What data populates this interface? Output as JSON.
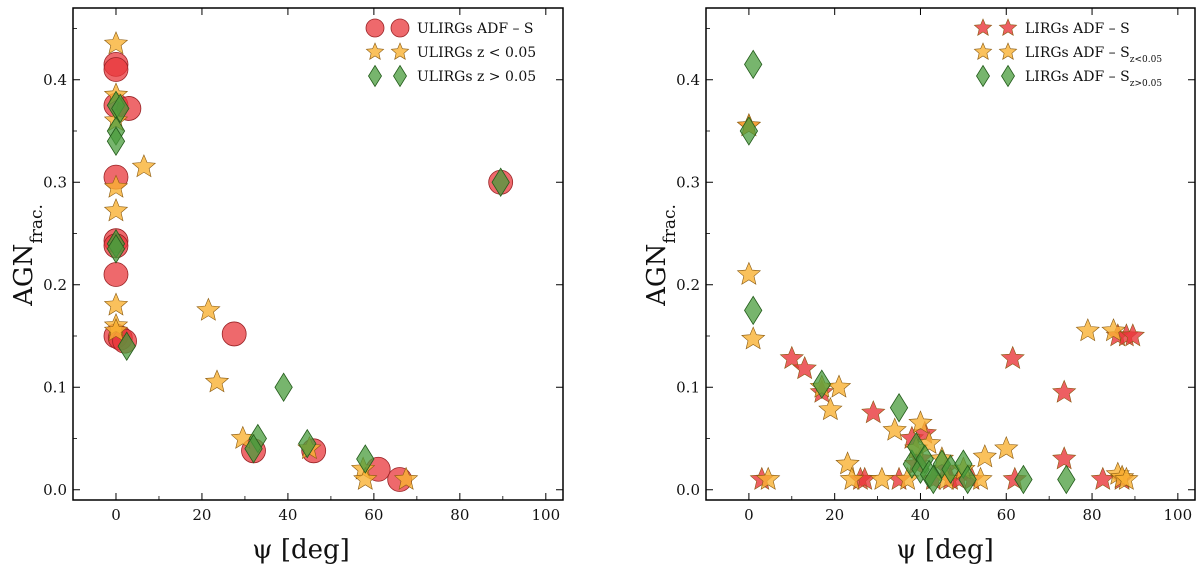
{
  "chart_data": [
    {
      "type": "scatter",
      "panel": "left",
      "xlabel": "ψ [deg]",
      "ylabel": "AGN_frac.",
      "ylabel_main": "AGN",
      "ylabel_sub": "frac.",
      "xlim": [
        -10,
        104
      ],
      "ylim": [
        -0.01,
        0.47
      ],
      "xticks": [
        0,
        20,
        40,
        60,
        80,
        100
      ],
      "yticks": [
        0.0,
        0.1,
        0.2,
        0.3,
        0.4
      ],
      "xtick_labels": [
        "0",
        "20",
        "40",
        "60",
        "80",
        "100"
      ],
      "ytick_labels": [
        "0.0",
        "0.1",
        "0.2",
        "0.3",
        "0.4"
      ],
      "legend_position": "top-right",
      "series": [
        {
          "name": "ULIRGs ADF – S",
          "marker": "circle",
          "color": "#e8373b",
          "points": [
            [
              0,
              0.415
            ],
            [
              0,
              0.41
            ],
            [
              0,
              0.375
            ],
            [
              3,
              0.372
            ],
            [
              0,
              0.305
            ],
            [
              0,
              0.243
            ],
            [
              0,
              0.238
            ],
            [
              0,
              0.21
            ],
            [
              0,
              0.15
            ],
            [
              1,
              0.148
            ],
            [
              2,
              0.145
            ],
            [
              27.5,
              0.152
            ],
            [
              32,
              0.038
            ],
            [
              46,
              0.038
            ],
            [
              61,
              0.02
            ],
            [
              66,
              0.01
            ],
            [
              89.5,
              0.3
            ]
          ]
        },
        {
          "name": "ULIRGs z < 0.05",
          "marker": "star",
          "color": "#f9b233",
          "points": [
            [
              0,
              0.435
            ],
            [
              0,
              0.385
            ],
            [
              0,
              0.36
            ],
            [
              0,
              0.295
            ],
            [
              0,
              0.272
            ],
            [
              0,
              0.18
            ],
            [
              0,
              0.16
            ],
            [
              0,
              0.155
            ],
            [
              6.5,
              0.315
            ],
            [
              21.5,
              0.175
            ],
            [
              23.5,
              0.105
            ],
            [
              29.5,
              0.05
            ],
            [
              45,
              0.04
            ],
            [
              57.5,
              0.02
            ],
            [
              58,
              0.01
            ],
            [
              67.5,
              0.01
            ]
          ]
        },
        {
          "name": "ULIRGs z > 0.05",
          "marker": "diamond",
          "color": "#4a9c3c",
          "points": [
            [
              0,
              0.375
            ],
            [
              1,
              0.372
            ],
            [
              0,
              0.35
            ],
            [
              0,
              0.34
            ],
            [
              0,
              0.24
            ],
            [
              0,
              0.235
            ],
            [
              2.5,
              0.14
            ],
            [
              39,
              0.1
            ],
            [
              33,
              0.05
            ],
            [
              32,
              0.04
            ],
            [
              44.5,
              0.045
            ],
            [
              58,
              0.03
            ],
            [
              89.5,
              0.3
            ]
          ]
        }
      ]
    },
    {
      "type": "scatter",
      "panel": "right",
      "xlabel": "ψ [deg]",
      "ylabel": "AGN_frac.",
      "ylabel_main": "AGN",
      "ylabel_sub": "frac.",
      "xlim": [
        -10,
        104
      ],
      "ylim": [
        -0.01,
        0.47
      ],
      "xticks": [
        0,
        20,
        40,
        60,
        80,
        100
      ],
      "yticks": [
        0.0,
        0.1,
        0.2,
        0.3,
        0.4
      ],
      "xtick_labels": [
        "0",
        "20",
        "40",
        "60",
        "80",
        "100"
      ],
      "ytick_labels": [
        "0.0",
        "0.1",
        "0.2",
        "0.3",
        "0.4"
      ],
      "legend_position": "top-right",
      "series": [
        {
          "name": "LIRGs ADF – S",
          "marker": "star",
          "color": "#e8373b",
          "points": [
            [
              0,
              0.355
            ],
            [
              3,
              0.01
            ],
            [
              10,
              0.128
            ],
            [
              13,
              0.118
            ],
            [
              17,
              0.095
            ],
            [
              26,
              0.01
            ],
            [
              27,
              0.01
            ],
            [
              29,
              0.075
            ],
            [
              35,
              0.01
            ],
            [
              38,
              0.05
            ],
            [
              39,
              0.025
            ],
            [
              40,
              0.03
            ],
            [
              41,
              0.055
            ],
            [
              43,
              0.01
            ],
            [
              46,
              0.02
            ],
            [
              47,
              0.01
            ],
            [
              49,
              0.01
            ],
            [
              52,
              0.01
            ],
            [
              61.5,
              0.128
            ],
            [
              62,
              0.01
            ],
            [
              73.5,
              0.095
            ],
            [
              73.5,
              0.03
            ],
            [
              82.5,
              0.01
            ],
            [
              86,
              0.15
            ],
            [
              87,
              0.01
            ],
            [
              88,
              0.15
            ],
            [
              89.5,
              0.15
            ]
          ]
        },
        {
          "name": "LIRGs ADF – S_{z<0.05}",
          "name_main": "LIRGs ADF – S",
          "name_sub": "z<0.05",
          "marker": "star",
          "color": "#f9b233",
          "points": [
            [
              0,
              0.355
            ],
            [
              0,
              0.21
            ],
            [
              1,
              0.147
            ],
            [
              4.5,
              0.01
            ],
            [
              17,
              0.1
            ],
            [
              19,
              0.078
            ],
            [
              21,
              0.1
            ],
            [
              23,
              0.025
            ],
            [
              24,
              0.01
            ],
            [
              31,
              0.01
            ],
            [
              34,
              0.058
            ],
            [
              37,
              0.01
            ],
            [
              39,
              0.04
            ],
            [
              40,
              0.065
            ],
            [
              42,
              0.045
            ],
            [
              45,
              0.03
            ],
            [
              46,
              0.01
            ],
            [
              50,
              0.02
            ],
            [
              54,
              0.01
            ],
            [
              55,
              0.032
            ],
            [
              60,
              0.04
            ],
            [
              79,
              0.155
            ],
            [
              85,
              0.155
            ],
            [
              86,
              0.015
            ],
            [
              87,
              0.012
            ],
            [
              88,
              0.01
            ]
          ]
        },
        {
          "name": "LIRGs ADF – S_{z>0.05}",
          "name_main": "LIRGs ADF – S",
          "name_sub": "z>0.05",
          "marker": "diamond",
          "color": "#4a9c3c",
          "points": [
            [
              0,
              0.35
            ],
            [
              1,
              0.415
            ],
            [
              1,
              0.175
            ],
            [
              17,
              0.103
            ],
            [
              35,
              0.08
            ],
            [
              38,
              0.025
            ],
            [
              39,
              0.042
            ],
            [
              40,
              0.02
            ],
            [
              41,
              0.03
            ],
            [
              42,
              0.015
            ],
            [
              43,
              0.01
            ],
            [
              45,
              0.025
            ],
            [
              47,
              0.02
            ],
            [
              50,
              0.025
            ],
            [
              51,
              0.01
            ],
            [
              64,
              0.01
            ],
            [
              74,
              0.01
            ]
          ]
        }
      ]
    }
  ]
}
